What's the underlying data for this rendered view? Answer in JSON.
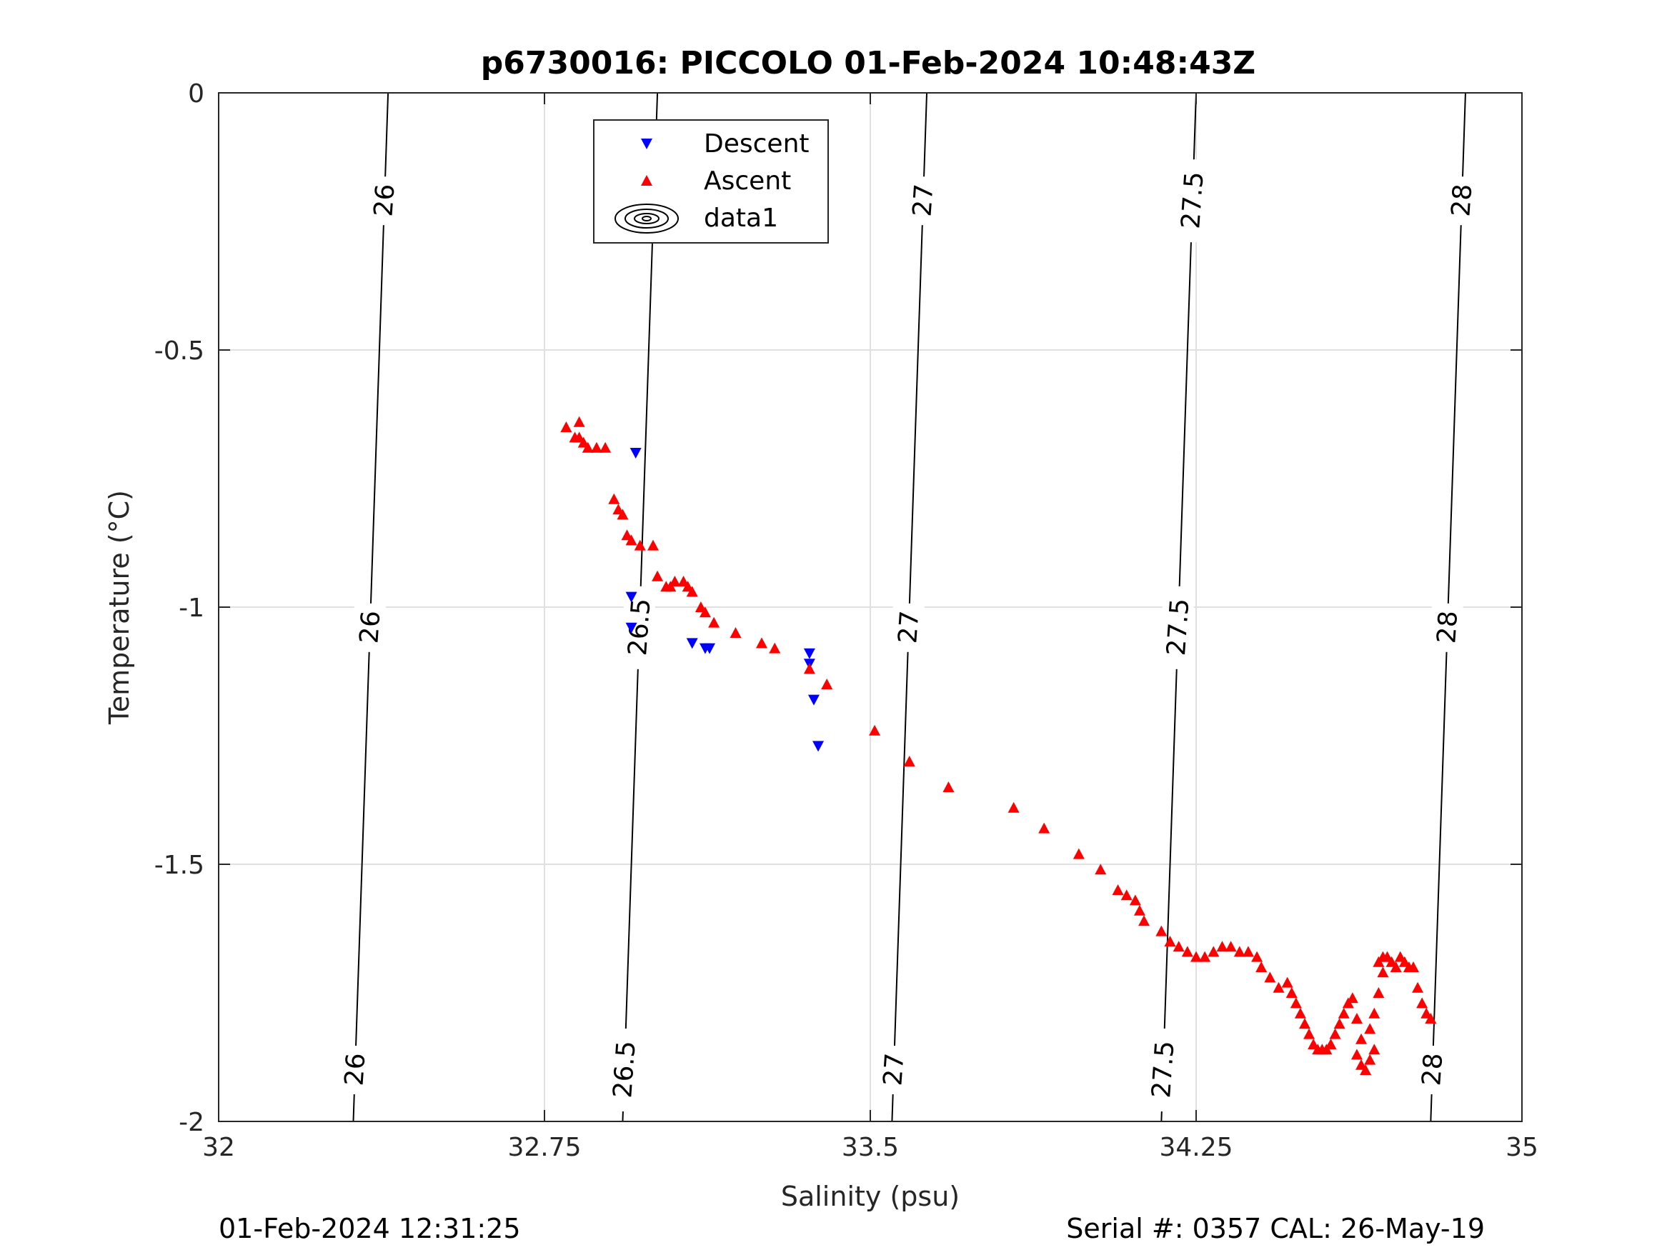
{
  "chart_data": {
    "type": "scatter",
    "title": "p6730016: PICCOLO 01-Feb-2024 10:48:43Z",
    "xlabel": "Salinity (psu)",
    "ylabel": "Temperature (°C)",
    "xlim": [
      32,
      35
    ],
    "ylim": [
      -2,
      0
    ],
    "xticks": [
      32,
      32.75,
      33.5,
      34.25,
      35
    ],
    "xtick_labels": [
      "32",
      "32.75",
      "33.5",
      "34.25",
      "35"
    ],
    "yticks": [
      -2,
      -1.5,
      -1,
      -0.5,
      0
    ],
    "ytick_labels": [
      "-2",
      "-1.5",
      "-1",
      "-0.5",
      "0"
    ],
    "grid": true,
    "legend": {
      "placement": "top-center",
      "entries": [
        "Descent",
        "Ascent",
        "data1"
      ]
    },
    "series": [
      {
        "name": "Descent",
        "marker": "triangle-down",
        "color": "#0000ff",
        "points": [
          [
            32.96,
            -0.7
          ],
          [
            32.95,
            -0.98
          ],
          [
            32.95,
            -1.04
          ],
          [
            33.09,
            -1.07
          ],
          [
            33.12,
            -1.08
          ],
          [
            33.13,
            -1.08
          ],
          [
            33.36,
            -1.09
          ],
          [
            33.36,
            -1.11
          ],
          [
            33.37,
            -1.18
          ],
          [
            33.38,
            -1.27
          ]
        ]
      },
      {
        "name": "Ascent",
        "marker": "triangle-up",
        "color": "#ff0000",
        "points": [
          [
            32.8,
            -0.65
          ],
          [
            32.83,
            -0.64
          ],
          [
            32.83,
            -0.67
          ],
          [
            32.84,
            -0.68
          ],
          [
            32.82,
            -0.67
          ],
          [
            32.85,
            -0.69
          ],
          [
            32.87,
            -0.69
          ],
          [
            32.89,
            -0.69
          ],
          [
            32.91,
            -0.79
          ],
          [
            32.92,
            -0.81
          ],
          [
            32.93,
            -0.82
          ],
          [
            32.94,
            -0.86
          ],
          [
            32.95,
            -0.87
          ],
          [
            32.97,
            -0.88
          ],
          [
            33.0,
            -0.88
          ],
          [
            33.01,
            -0.94
          ],
          [
            33.03,
            -0.96
          ],
          [
            33.04,
            -0.96
          ],
          [
            33.05,
            -0.95
          ],
          [
            33.07,
            -0.95
          ],
          [
            33.08,
            -0.96
          ],
          [
            33.09,
            -0.97
          ],
          [
            33.11,
            -1.0
          ],
          [
            33.12,
            -1.01
          ],
          [
            33.14,
            -1.03
          ],
          [
            33.19,
            -1.05
          ],
          [
            33.25,
            -1.07
          ],
          [
            33.28,
            -1.08
          ],
          [
            33.36,
            -1.12
          ],
          [
            33.4,
            -1.15
          ],
          [
            33.51,
            -1.24
          ],
          [
            33.59,
            -1.3
          ],
          [
            33.68,
            -1.35
          ],
          [
            33.83,
            -1.39
          ],
          [
            33.9,
            -1.43
          ],
          [
            33.98,
            -1.48
          ],
          [
            34.03,
            -1.51
          ],
          [
            34.07,
            -1.55
          ],
          [
            34.09,
            -1.56
          ],
          [
            34.11,
            -1.57
          ],
          [
            34.12,
            -1.59
          ],
          [
            34.13,
            -1.61
          ],
          [
            34.17,
            -1.63
          ],
          [
            34.19,
            -1.65
          ],
          [
            34.21,
            -1.66
          ],
          [
            34.23,
            -1.67
          ],
          [
            34.25,
            -1.68
          ],
          [
            34.27,
            -1.68
          ],
          [
            34.29,
            -1.67
          ],
          [
            34.31,
            -1.66
          ],
          [
            34.33,
            -1.66
          ],
          [
            34.35,
            -1.67
          ],
          [
            34.37,
            -1.67
          ],
          [
            34.39,
            -1.68
          ],
          [
            34.4,
            -1.7
          ],
          [
            34.42,
            -1.72
          ],
          [
            34.44,
            -1.74
          ],
          [
            34.46,
            -1.73
          ],
          [
            34.47,
            -1.75
          ],
          [
            34.48,
            -1.77
          ],
          [
            34.49,
            -1.79
          ],
          [
            34.5,
            -1.81
          ],
          [
            34.51,
            -1.83
          ],
          [
            34.52,
            -1.85
          ],
          [
            34.53,
            -1.86
          ],
          [
            34.54,
            -1.86
          ],
          [
            34.55,
            -1.86
          ],
          [
            34.56,
            -1.85
          ],
          [
            34.57,
            -1.83
          ],
          [
            34.58,
            -1.81
          ],
          [
            34.59,
            -1.79
          ],
          [
            34.6,
            -1.77
          ],
          [
            34.61,
            -1.76
          ],
          [
            34.62,
            -1.8
          ],
          [
            34.63,
            -1.84
          ],
          [
            34.62,
            -1.87
          ],
          [
            34.63,
            -1.89
          ],
          [
            34.64,
            -1.9
          ],
          [
            34.65,
            -1.88
          ],
          [
            34.66,
            -1.86
          ],
          [
            34.65,
            -1.82
          ],
          [
            34.66,
            -1.79
          ],
          [
            34.67,
            -1.75
          ],
          [
            34.68,
            -1.71
          ],
          [
            34.67,
            -1.69
          ],
          [
            34.68,
            -1.68
          ],
          [
            34.69,
            -1.68
          ],
          [
            34.7,
            -1.69
          ],
          [
            34.71,
            -1.7
          ],
          [
            34.72,
            -1.68
          ],
          [
            34.73,
            -1.69
          ],
          [
            34.74,
            -1.7
          ],
          [
            34.75,
            -1.7
          ],
          [
            34.76,
            -1.74
          ],
          [
            34.77,
            -1.77
          ],
          [
            34.78,
            -1.79
          ],
          [
            34.79,
            -1.8
          ]
        ]
      }
    ],
    "contours": {
      "color": "#000000",
      "levels": [
        {
          "label": "26",
          "top_x": 32.39,
          "bottom_x": 32.31
        },
        {
          "label": "26.5",
          "top_x": 33.01,
          "bottom_x": 32.93
        },
        {
          "label": "27",
          "top_x": 33.63,
          "bottom_x": 33.55
        },
        {
          "label": "27.5",
          "top_x": 34.25,
          "bottom_x": 34.17
        },
        {
          "label": "28",
          "top_x": 34.87,
          "bottom_x": 34.79
        }
      ],
      "label_y": [
        -0.21,
        -1.04,
        -1.9
      ]
    }
  },
  "footer": {
    "left": "01-Feb-2024 12:31:25",
    "right": "Serial #: 0357  CAL: 26-May-19"
  }
}
